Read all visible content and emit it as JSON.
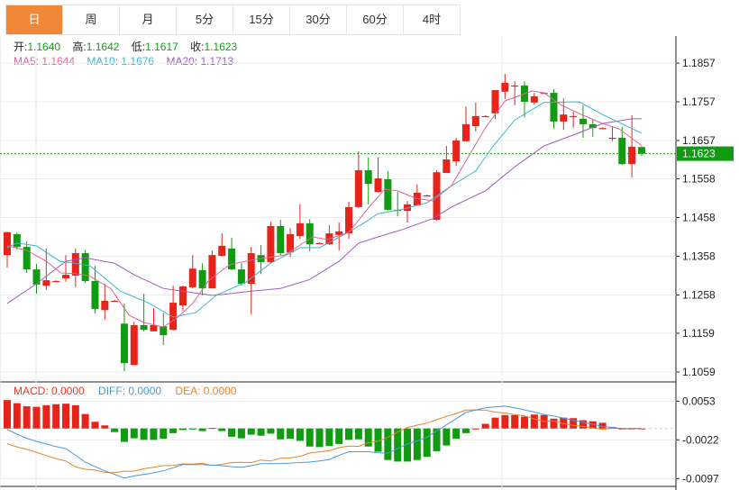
{
  "tabs": [
    "日",
    "周",
    "月",
    "5分",
    "15分",
    "30分",
    "60分",
    "4时"
  ],
  "active_tab": 0,
  "ohlc_info": {
    "open_label": "开:",
    "open": "1.1640",
    "high_label": "高:",
    "high": "1.1642",
    "low_label": "低:",
    "low": "1.1617",
    "close_label": "收:",
    "close": "1.1623"
  },
  "ma_info": {
    "ma5": "MA5: 1.1644",
    "ma10": "MA10: 1.1676",
    "ma20": "MA20: 1.1713"
  },
  "macd_info": {
    "macd": "MACD: 0.0000",
    "diff": "DIFF: 0.0000",
    "dea": "DEA: 0.0000"
  },
  "colors": {
    "up": "#e8231a",
    "down": "#119b11",
    "ma5": "#d9669a",
    "ma10": "#3bb7cf",
    "ma20": "#a05bc0",
    "diff": "#4a9ad8",
    "dea": "#e8822a",
    "active_tab": "#f0883a"
  },
  "chart_data": {
    "type": "candlestick",
    "price_axis": {
      "ticks": [
        "1.1857",
        "1.1757",
        "1.1657",
        "1.1558",
        "1.1458",
        "1.1358",
        "1.1258",
        "1.1159",
        "1.1059"
      ],
      "range": [
        1.1059,
        1.1857
      ]
    },
    "current_price": "1.1623",
    "candles_ohlc": [
      [
        1.1361,
        1.1422,
        1.1329,
        1.142
      ],
      [
        1.1415,
        1.142,
        1.1375,
        1.1382
      ],
      [
        1.1382,
        1.1396,
        1.1315,
        1.1324
      ],
      [
        1.1324,
        1.1338,
        1.1261,
        1.1285
      ],
      [
        1.1282,
        1.1378,
        1.1271,
        1.1296
      ],
      [
        1.1294,
        1.1296,
        1.1292,
        1.1294
      ],
      [
        1.1301,
        1.1361,
        1.1292,
        1.131
      ],
      [
        1.1308,
        1.1378,
        1.1278,
        1.1366
      ],
      [
        1.1366,
        1.1375,
        1.1289,
        1.1294
      ],
      [
        1.1294,
        1.1333,
        1.121,
        1.1222
      ],
      [
        1.1219,
        1.1287,
        1.1194,
        1.1243
      ],
      [
        1.1243,
        1.1245,
        1.1241,
        1.1243
      ],
      [
        1.1184,
        1.1236,
        1.1061,
        1.1082
      ],
      [
        1.1077,
        1.1189,
        1.1077,
        1.118
      ],
      [
        1.118,
        1.1261,
        1.1164,
        1.1168
      ],
      [
        1.1164,
        1.1224,
        1.1164,
        1.118
      ],
      [
        1.1177,
        1.1212,
        1.1129,
        1.1154
      ],
      [
        1.1168,
        1.1282,
        1.1166,
        1.1238
      ],
      [
        1.1231,
        1.1282,
        1.1217,
        1.128
      ],
      [
        1.1278,
        1.1361,
        1.1275,
        1.1326
      ],
      [
        1.1322,
        1.134,
        1.1257,
        1.1275
      ],
      [
        1.1275,
        1.1373,
        1.1275,
        1.1361
      ],
      [
        1.1359,
        1.1417,
        1.1357,
        1.1385
      ],
      [
        1.1378,
        1.1406,
        1.1322,
        1.1324
      ],
      [
        1.1324,
        1.134,
        1.1282,
        1.1287
      ],
      [
        1.1287,
        1.1382,
        1.1208,
        1.1366
      ],
      [
        1.1361,
        1.1387,
        1.1312,
        1.1343
      ],
      [
        1.1343,
        1.1447,
        1.134,
        1.1436
      ],
      [
        1.1436,
        1.1452,
        1.1361,
        1.1366
      ],
      [
        1.1368,
        1.1431,
        1.1357,
        1.1415
      ],
      [
        1.141,
        1.1492,
        1.1403,
        1.1443
      ],
      [
        1.1443,
        1.1454,
        1.1371,
        1.1389
      ],
      [
        1.1392,
        1.1394,
        1.139,
        1.1392
      ],
      [
        1.1389,
        1.1438,
        1.1387,
        1.1417
      ],
      [
        1.1413,
        1.1445,
        1.1373,
        1.1422
      ],
      [
        1.1417,
        1.1499,
        1.1403,
        1.1485
      ],
      [
        1.1485,
        1.1629,
        1.1482,
        1.158
      ],
      [
        1.158,
        1.1613,
        1.1492,
        1.1545
      ],
      [
        1.1524,
        1.1613,
        1.1524,
        1.1559
      ],
      [
        1.1557,
        1.1578,
        1.1475,
        1.1478
      ],
      [
        1.1478,
        1.1524,
        1.1461,
        1.1475
      ],
      [
        1.1475,
        1.1501,
        1.1445,
        1.1492
      ],
      [
        1.1489,
        1.1543,
        1.1489,
        1.1522
      ],
      [
        1.1515,
        1.1517,
        1.1513,
        1.1515
      ],
      [
        1.1452,
        1.158,
        1.145,
        1.1575
      ],
      [
        1.1573,
        1.1643,
        1.1573,
        1.1608
      ],
      [
        1.1603,
        1.1664,
        1.1592,
        1.1657
      ],
      [
        1.1655,
        1.1745,
        1.1655,
        1.1699
      ],
      [
        1.1694,
        1.1755,
        1.168,
        1.172
      ],
      [
        1.172,
        1.1722,
        1.1718,
        1.172
      ],
      [
        1.1727,
        1.1787,
        1.1713,
        1.1787
      ],
      [
        1.1783,
        1.1829,
        1.1764,
        1.1806
      ],
      [
        1.1799,
        1.181,
        1.1748,
        1.1799
      ],
      [
        1.1799,
        1.181,
        1.1717,
        1.1757
      ],
      [
        1.1755,
        1.178,
        1.175,
        1.1771
      ],
      [
        1.178,
        1.1782,
        1.1778,
        1.178
      ],
      [
        1.178,
        1.179,
        1.1687,
        1.1706
      ],
      [
        1.1706,
        1.1766,
        1.1685,
        1.1724
      ],
      [
        1.172,
        1.1731,
        1.169,
        1.172
      ],
      [
        1.1713,
        1.1748,
        1.1664,
        1.1699
      ],
      [
        1.1699,
        1.1713,
        1.1666,
        1.1689
      ],
      [
        1.1689,
        1.1691,
        1.1687,
        1.1689
      ],
      [
        1.1664,
        1.1694,
        1.1655,
        1.1664
      ],
      [
        1.1664,
        1.1692,
        1.1594,
        1.1596
      ],
      [
        1.1596,
        1.1722,
        1.1561,
        1.1641
      ],
      [
        1.164,
        1.1642,
        1.1617,
        1.1623
      ]
    ],
    "ma5_points": [
      [
        0,
        1.1385
      ],
      [
        2,
        1.1373
      ],
      [
        4,
        1.1345
      ],
      [
        5.5,
        1.1315
      ],
      [
        7,
        1.1313
      ],
      [
        8.5,
        1.1306
      ],
      [
        10.6,
        1.1275
      ],
      [
        12.5,
        1.1205
      ],
      [
        14,
        1.1187
      ],
      [
        16,
        1.1175
      ],
      [
        17.5,
        1.1201
      ],
      [
        19,
        1.1236
      ],
      [
        20.6,
        1.1294
      ],
      [
        22.4,
        1.1329
      ],
      [
        23,
        1.1338
      ],
      [
        25.5,
        1.135
      ],
      [
        28.4,
        1.1361
      ],
      [
        31.3,
        1.1408
      ],
      [
        32.8,
        1.1401
      ],
      [
        35,
        1.142
      ],
      [
        37.3,
        1.1492
      ],
      [
        38.7,
        1.1531
      ],
      [
        40,
        1.1527
      ],
      [
        41.8,
        1.1508
      ],
      [
        43.6,
        1.1501
      ],
      [
        45.5,
        1.154
      ],
      [
        49,
        1.169
      ],
      [
        51,
        1.1759
      ],
      [
        53.8,
        1.1785
      ],
      [
        55,
        1.178
      ],
      [
        56.8,
        1.1748
      ],
      [
        59,
        1.1722
      ],
      [
        61,
        1.1701
      ],
      [
        62.7,
        1.1687
      ],
      [
        65,
        1.1644
      ]
    ],
    "ma10_points": [
      [
        0,
        1.138
      ],
      [
        1,
        1.1392
      ],
      [
        3,
        1.1385
      ],
      [
        5.4,
        1.1345
      ],
      [
        7,
        1.134
      ],
      [
        8.5,
        1.1333
      ],
      [
        11.6,
        1.1268
      ],
      [
        14.6,
        1.1236
      ],
      [
        17,
        1.1201
      ],
      [
        19.3,
        1.1212
      ],
      [
        21.4,
        1.1257
      ],
      [
        24.5,
        1.1292
      ],
      [
        27,
        1.134
      ],
      [
        30,
        1.138
      ],
      [
        32,
        1.138
      ],
      [
        34.6,
        1.1415
      ],
      [
        36.5,
        1.1443
      ],
      [
        38,
        1.1468
      ],
      [
        40.3,
        1.1478
      ],
      [
        43,
        1.1496
      ],
      [
        45.5,
        1.154
      ],
      [
        48,
        1.1578
      ],
      [
        49.8,
        1.1643
      ],
      [
        52,
        1.171
      ],
      [
        55,
        1.1755
      ],
      [
        58.6,
        1.1757
      ],
      [
        61,
        1.1724
      ],
      [
        65,
        1.1676
      ]
    ],
    "ma20_points": [
      [
        0,
        1.1236
      ],
      [
        3,
        1.1287
      ],
      [
        6,
        1.1345
      ],
      [
        8,
        1.1354
      ],
      [
        11,
        1.134
      ],
      [
        13,
        1.131
      ],
      [
        16,
        1.1275
      ],
      [
        19,
        1.1264
      ],
      [
        21,
        1.1257
      ],
      [
        22,
        1.1259
      ],
      [
        25,
        1.1268
      ],
      [
        28,
        1.1275
      ],
      [
        31,
        1.1298
      ],
      [
        34,
        1.1345
      ],
      [
        36,
        1.1392
      ],
      [
        38,
        1.1408
      ],
      [
        40.5,
        1.1427
      ],
      [
        43.6,
        1.1455
      ],
      [
        45.5,
        1.1485
      ],
      [
        49,
        1.1527
      ],
      [
        52,
        1.1589
      ],
      [
        55,
        1.1643
      ],
      [
        58,
        1.1671
      ],
      [
        61,
        1.1701
      ],
      [
        64,
        1.1713
      ],
      [
        65,
        1.1713
      ]
    ],
    "macd_axis": {
      "ticks": [
        "0.0053",
        "-0.0022",
        "-0.0097"
      ]
    },
    "macd_hist": [
      0.0055,
      0.0049,
      0.0043,
      0.0042,
      0.0045,
      0.0047,
      0.0048,
      0.0045,
      0.0028,
      0.0013,
      0.0006,
      -0.0007,
      -0.0026,
      -0.0019,
      -0.0022,
      -0.0022,
      -0.002,
      -0.0009,
      -0.0003,
      -0.0002,
      -0.0005,
      0.0001,
      -0.0005,
      -0.0016,
      -0.0019,
      -0.0012,
      -0.0014,
      -0.001,
      -0.0021,
      -0.002,
      -0.0024,
      -0.0035,
      -0.0036,
      -0.0034,
      -0.003,
      -0.0022,
      -0.0021,
      -0.0035,
      -0.0045,
      -0.0061,
      -0.0064,
      -0.0064,
      -0.0061,
      -0.0055,
      -0.0044,
      -0.0033,
      -0.002,
      -0.0009,
      0.0,
      0.0009,
      0.0021,
      0.0026,
      0.0026,
      0.0023,
      0.0027,
      0.0026,
      0.0019,
      0.0021,
      0.002,
      0.0016,
      0.0014,
      0.0011,
      0.0003,
      0.0,
      0.0,
      0.0
    ],
    "diff": [
      -0.0002,
      -0.0011,
      -0.0019,
      -0.0025,
      -0.003,
      -0.0035,
      -0.0039,
      -0.0052,
      -0.0065,
      -0.0074,
      -0.0082,
      -0.0089,
      -0.0096,
      -0.0092,
      -0.0089,
      -0.0086,
      -0.0082,
      -0.0076,
      -0.007,
      -0.007,
      -0.007,
      -0.0071,
      -0.0072,
      -0.0074,
      -0.0075,
      -0.0072,
      -0.0068,
      -0.0068,
      -0.0068,
      -0.0067,
      -0.0066,
      -0.0065,
      -0.0063,
      -0.006,
      -0.0052,
      -0.0045,
      -0.0045,
      -0.0045,
      -0.0047,
      -0.0048,
      -0.0039,
      -0.003,
      -0.0024,
      -0.0017,
      -0.0005,
      0.0007,
      0.0019,
      0.0031,
      0.0036,
      0.004,
      0.0042,
      0.0043,
      0.004,
      0.0036,
      0.0032,
      0.0027,
      0.0024,
      0.002,
      0.0016,
      0.0012,
      0.0008,
      0.0004,
      0.0002,
      0.0,
      0.0,
      0.0
    ]
  }
}
